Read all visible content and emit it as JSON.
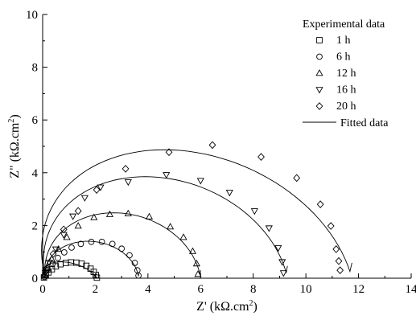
{
  "chart_data": {
    "type": "scatter",
    "xlabel": "Z' (kΩ.cm²)",
    "ylabel": "Z\" (kΩ.cm²)",
    "xlabel_parts": [
      "Z' (kΩ.cm",
      "2",
      ")"
    ],
    "ylabel_parts": [
      "Z\" (kΩ.cm",
      "2",
      ")"
    ],
    "xlim": [
      0,
      14
    ],
    "ylim": [
      0,
      10
    ],
    "xticks": [
      0,
      2,
      4,
      6,
      8,
      10,
      12,
      14
    ],
    "yticks": [
      0,
      2,
      4,
      6,
      8,
      10
    ],
    "legend": {
      "title": "Experimental data",
      "position": "top-right",
      "fit_label": "Fitted data"
    },
    "series": [
      {
        "name": "1 h",
        "marker": "square",
        "x": [
          0.05,
          0.12,
          0.22,
          0.35,
          0.5,
          0.68,
          0.88,
          1.08,
          1.28,
          1.48,
          1.66,
          1.82,
          1.94,
          2.02,
          2.06
        ],
        "y": [
          0.03,
          0.1,
          0.22,
          0.34,
          0.45,
          0.53,
          0.58,
          0.6,
          0.59,
          0.55,
          0.47,
          0.36,
          0.24,
          0.12,
          0.02
        ]
      },
      {
        "name": "6 h",
        "marker": "circle",
        "x": [
          0.06,
          0.12,
          0.22,
          0.38,
          0.58,
          0.82,
          1.1,
          1.45,
          1.85,
          2.25,
          2.65,
          3.0,
          3.3,
          3.5,
          3.6,
          3.64
        ],
        "y": [
          0.05,
          0.15,
          0.32,
          0.55,
          0.77,
          0.98,
          1.16,
          1.3,
          1.38,
          1.38,
          1.3,
          1.12,
          0.87,
          0.58,
          0.3,
          0.1
        ]
      },
      {
        "name": "12 h",
        "marker": "triangle-up",
        "x": [
          0.09,
          0.19,
          0.35,
          0.6,
          0.92,
          1.35,
          1.95,
          2.55,
          3.25,
          4.05,
          4.85,
          5.35,
          5.7,
          5.85,
          5.9
        ],
        "y": [
          0.12,
          0.38,
          0.72,
          1.1,
          1.55,
          1.98,
          2.3,
          2.42,
          2.45,
          2.33,
          1.95,
          1.55,
          1.02,
          0.55,
          0.15
        ]
      },
      {
        "name": "16 h",
        "marker": "triangle-down",
        "x": [
          0.1,
          0.25,
          0.5,
          0.8,
          1.15,
          1.6,
          2.2,
          3.25,
          4.7,
          6.0,
          7.1,
          8.05,
          8.6,
          8.95,
          9.1,
          9.15
        ],
        "y": [
          0.2,
          0.6,
          1.1,
          1.65,
          2.35,
          3.05,
          3.45,
          3.65,
          3.92,
          3.7,
          3.25,
          2.55,
          1.9,
          1.15,
          0.62,
          0.2
        ]
      },
      {
        "name": "20 h",
        "marker": "diamond",
        "x": [
          0.15,
          0.4,
          0.8,
          1.35,
          2.05,
          3.15,
          4.8,
          6.45,
          8.3,
          9.65,
          10.55,
          10.95,
          11.15,
          11.25,
          11.3
        ],
        "y": [
          0.3,
          0.92,
          1.85,
          2.55,
          3.35,
          4.15,
          4.78,
          5.05,
          4.6,
          3.8,
          2.8,
          1.98,
          1.1,
          0.65,
          0.3
        ]
      }
    ],
    "fits": [
      {
        "name": "1 h",
        "x0": 0.05,
        "x1": 2.05,
        "h": 0.62,
        "b": 0.35
      },
      {
        "name": "6 h",
        "x0": 0.08,
        "x1": 3.65,
        "h": 1.4,
        "b": 0.15
      },
      {
        "name": "12 h",
        "x0": 0.1,
        "x1": 6.0,
        "h": 2.48,
        "b": 0.35
      },
      {
        "name": "16 h",
        "x0": 0.1,
        "x1": 9.3,
        "h": 3.85,
        "b": 0.8
      },
      {
        "name": "20 h",
        "x0": 0.1,
        "x1": 11.75,
        "h": 4.87,
        "b": 1.3
      }
    ]
  }
}
